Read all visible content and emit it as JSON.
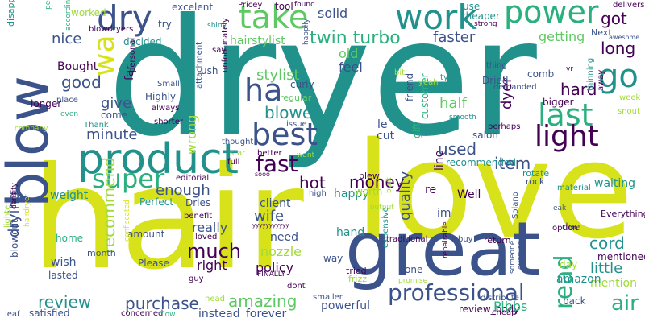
{
  "palette": {
    "yellow": "#d8e21a",
    "green": "#5ec962",
    "teal": "#21918c",
    "blue": "#3b528b",
    "purple": "#440154",
    "lime": "#a0da39",
    "cyan": "#2ab07f"
  },
  "words": [
    {
      "text": "dryer",
      "color": "#21918c"
    },
    {
      "text": "hair",
      "color": "#d8e21a"
    },
    {
      "text": "love",
      "color": "#d8e21a"
    },
    {
      "text": "great",
      "color": "#3b528b"
    },
    {
      "text": "blow",
      "color": "#3b528b"
    },
    {
      "text": "product",
      "color": "#21918c"
    },
    {
      "text": "work",
      "color": "#21918c"
    },
    {
      "text": "power",
      "color": "#2ab07f"
    },
    {
      "text": "take",
      "color": "#5ec962"
    },
    {
      "text": "dry",
      "color": "#3b528b"
    },
    {
      "text": "wa",
      "color": "#d8e21a"
    },
    {
      "text": "go",
      "color": "#21918c"
    },
    {
      "text": "ha",
      "color": "#3b528b"
    },
    {
      "text": "best",
      "color": "#3b528b"
    },
    {
      "text": "last",
      "color": "#2ab07f"
    },
    {
      "text": "light",
      "color": "#440154"
    },
    {
      "text": "fast",
      "color": "#440154"
    },
    {
      "text": "read",
      "color": "#2ab07f"
    },
    {
      "text": "super",
      "color": "#2ab07f"
    },
    {
      "text": "professional",
      "color": "#3b528b"
    },
    {
      "text": "air",
      "color": "#2ab07f"
    },
    {
      "text": "twin turbo",
      "color": "#2ab07f"
    },
    {
      "text": "faster",
      "color": "#3b528b"
    },
    {
      "text": "getting",
      "color": "#5ec962"
    },
    {
      "text": "long",
      "color": "#440154"
    },
    {
      "text": "got",
      "color": "#440154"
    },
    {
      "text": "solid",
      "color": "#3b528b"
    },
    {
      "text": "nice",
      "color": "#3b528b"
    },
    {
      "text": "hairstylist",
      "color": "#5ec962"
    },
    {
      "text": "old",
      "color": "#5ec962"
    },
    {
      "text": "feel",
      "color": "#3b528b"
    },
    {
      "text": "good",
      "color": "#3b528b"
    },
    {
      "text": "stylist",
      "color": "#5ec962"
    },
    {
      "text": "blower",
      "color": "#21918c"
    },
    {
      "text": "hard",
      "color": "#440154"
    },
    {
      "text": "give",
      "color": "#3b528b"
    },
    {
      "text": "half",
      "color": "#5ec962"
    },
    {
      "text": "minute",
      "color": "#3b528b"
    },
    {
      "text": "used",
      "color": "#3b528b"
    },
    {
      "text": "item",
      "color": "#3b528b"
    },
    {
      "text": "enough",
      "color": "#3b528b"
    },
    {
      "text": "hot",
      "color": "#440154"
    },
    {
      "text": "money",
      "color": "#440154"
    },
    {
      "text": "recommend",
      "color": "#a0da39"
    },
    {
      "text": "drying",
      "color": "#3b528b"
    },
    {
      "text": "much",
      "color": "#440154"
    },
    {
      "text": "wife",
      "color": "#3b528b"
    },
    {
      "text": "really",
      "color": "#3b528b"
    },
    {
      "text": "amazing",
      "color": "#5ec962"
    },
    {
      "text": "purchase",
      "color": "#3b528b"
    },
    {
      "text": "review",
      "color": "#21918c"
    },
    {
      "text": "cord",
      "color": "#21918c"
    },
    {
      "text": "little",
      "color": "#21918c"
    },
    {
      "text": "mention",
      "color": "#a0da39"
    },
    {
      "text": "quality",
      "color": "#3b528b"
    },
    {
      "text": "right",
      "color": "#440154"
    },
    {
      "text": "policy",
      "color": "#440154"
    },
    {
      "text": "need",
      "color": "#3b528b"
    },
    {
      "text": "nozzle",
      "color": "#a0da39"
    },
    {
      "text": "hand",
      "color": "#21918c"
    },
    {
      "text": "powerful",
      "color": "#3b528b"
    },
    {
      "text": "dyer",
      "color": "#440154"
    },
    {
      "text": "happy",
      "color": "#21918c"
    },
    {
      "text": "weight",
      "color": "#21918c"
    },
    {
      "text": "wrong",
      "color": "#a0da39"
    },
    {
      "text": "worked",
      "color": "#a0da39"
    },
    {
      "text": "excelent",
      "color": "#3b528b"
    },
    {
      "text": "Bought",
      "color": "#440154"
    },
    {
      "text": "far",
      "color": "#440154"
    },
    {
      "text": "tool",
      "color": "#440154"
    },
    {
      "text": "Pricey",
      "color": "#440154"
    },
    {
      "text": "use",
      "color": "#21918c"
    },
    {
      "text": "cheaper",
      "color": "#21918c"
    },
    {
      "text": "Next",
      "color": "#3b528b"
    },
    {
      "text": "decided",
      "color": "#21918c"
    },
    {
      "text": "Highly",
      "color": "#3b528b"
    },
    {
      "text": "regular",
      "color": "#5ec962"
    },
    {
      "text": "curly",
      "color": "#3b528b"
    },
    {
      "text": "Dried",
      "color": "#3b528b"
    },
    {
      "text": "comb",
      "color": "#3b528b"
    },
    {
      "text": "bigger",
      "color": "#440154"
    },
    {
      "text": "week",
      "color": "#a0da39"
    },
    {
      "text": "snout",
      "color": "#a0da39"
    },
    {
      "text": "mentioned",
      "color": "#440154"
    },
    {
      "text": "Everything",
      "color": "#440154"
    },
    {
      "text": "delivers",
      "color": "#440154"
    },
    {
      "text": "awesome",
      "color": "#3b528b"
    },
    {
      "text": "strong",
      "color": "#440154"
    },
    {
      "text": "thinning",
      "color": "#21918c"
    },
    {
      "text": "away",
      "color": "#440154"
    },
    {
      "text": "le",
      "color": "#3b528b"
    },
    {
      "text": "cut",
      "color": "#3b528b"
    },
    {
      "text": "friend",
      "color": "#3b528b"
    },
    {
      "text": "customer",
      "color": "#2ab07f"
    },
    {
      "text": "gift",
      "color": "#2ab07f"
    },
    {
      "text": "line",
      "color": "#440154"
    },
    {
      "text": "salon",
      "color": "#3b528b"
    },
    {
      "text": "perhaps",
      "color": "#440154"
    },
    {
      "text": "client",
      "color": "#3b528b"
    },
    {
      "text": "Perfect",
      "color": "#21918c"
    },
    {
      "text": "Dries",
      "color": "#3b528b"
    },
    {
      "text": "im",
      "color": "#3b528b"
    },
    {
      "text": "Well",
      "color": "#440154"
    },
    {
      "text": "re",
      "color": "#440154"
    },
    {
      "text": "recommended",
      "color": "#21918c"
    },
    {
      "text": "worth",
      "color": "#a0da39"
    },
    {
      "text": "editorial",
      "color": "#440154"
    },
    {
      "text": "built",
      "color": "#a0da39"
    },
    {
      "text": "amount",
      "color": "#3b528b"
    },
    {
      "text": "benefit",
      "color": "#440154"
    },
    {
      "text": "Solano",
      "color": "#3b528b"
    },
    {
      "text": "doe",
      "color": "#3b528b"
    },
    {
      "text": "option",
      "color": "#440154"
    },
    {
      "text": "rotate",
      "color": "#21918c"
    },
    {
      "text": "rock",
      "color": "#3b528b"
    },
    {
      "text": "waiting",
      "color": "#21918c"
    },
    {
      "text": "material",
      "color": "#21918c"
    },
    {
      "text": "one",
      "color": "#3b528b"
    },
    {
      "text": "day",
      "color": "#a0da39"
    },
    {
      "text": "amazon",
      "color": "#21918c"
    },
    {
      "text": "back",
      "color": "#3b528b"
    },
    {
      "text": "traditional",
      "color": "#440154"
    },
    {
      "text": "way",
      "color": "#3b528b"
    },
    {
      "text": "review_body",
      "color": "#440154"
    },
    {
      "text": "Pibbs",
      "color": "#2ab07f"
    },
    {
      "text": "instead",
      "color": "#3b528b"
    },
    {
      "text": "forever",
      "color": "#3b528b"
    },
    {
      "text": "smaller",
      "color": "#3b528b"
    },
    {
      "text": "satisfied",
      "color": "#3b528b"
    },
    {
      "text": "lasted",
      "color": "#3b528b"
    },
    {
      "text": "wish",
      "color": "#3b528b"
    },
    {
      "text": "home",
      "color": "#2ab07f"
    },
    {
      "text": "loved",
      "color": "#440154"
    },
    {
      "text": "Please",
      "color": "#3b528b"
    },
    {
      "text": "month",
      "color": "#3b528b"
    },
    {
      "text": "blowout",
      "color": "#3b528b"
    },
    {
      "text": "lighter",
      "color": "#a0da39"
    },
    {
      "text": "longer",
      "color": "#440154"
    },
    {
      "text": "disappointed",
      "color": "#21918c"
    },
    {
      "text": "place",
      "color": "#3b528b"
    },
    {
      "text": "personal",
      "color": "#440154"
    },
    {
      "text": "Small",
      "color": "#3b528b"
    },
    {
      "text": "come",
      "color": "#3b528b"
    },
    {
      "text": "Thank",
      "color": "#21918c"
    },
    {
      "text": "always",
      "color": "#440154"
    },
    {
      "text": "shorter",
      "color": "#440154"
    },
    {
      "text": "thought",
      "color": "#3b528b"
    },
    {
      "text": "star",
      "color": "#a0da39"
    },
    {
      "text": "better",
      "color": "#440154"
    },
    {
      "text": "issue",
      "color": "#3b528b"
    },
    {
      "text": "attachment",
      "color": "#3b528b"
    },
    {
      "text": "unfortunately",
      "color": "#440154"
    },
    {
      "text": "say",
      "color": "#440154"
    },
    {
      "text": "ush",
      "color": "#3b528b"
    },
    {
      "text": "try",
      "color": "#3b528b"
    },
    {
      "text": "blowdryers",
      "color": "#440154"
    },
    {
      "text": "people",
      "color": "#2ab07f"
    },
    {
      "text": "according",
      "color": "#2ab07f"
    },
    {
      "text": "shiny",
      "color": "#21918c"
    },
    {
      "text": "found",
      "color": "#440154"
    },
    {
      "text": "happily",
      "color": "#3b528b"
    },
    {
      "text": "bit",
      "color": "#a0da39"
    },
    {
      "text": "yeah",
      "color": "#a0da39"
    },
    {
      "text": "thing",
      "color": "#3b528b"
    },
    {
      "text": "type",
      "color": "#21918c"
    },
    {
      "text": "demanded",
      "color": "#3b528b"
    },
    {
      "text": "yr",
      "color": "#440154"
    },
    {
      "text": "smooth",
      "color": "#21918c"
    },
    {
      "text": "company",
      "color": "#a0da39"
    },
    {
      "text": "even",
      "color": "#2ab07f"
    },
    {
      "text": "want",
      "color": "#a0da39"
    },
    {
      "text": "blew",
      "color": "#440154"
    },
    {
      "text": "full",
      "color": "#440154"
    },
    {
      "text": "sooo",
      "color": "#440154"
    },
    {
      "text": "high",
      "color": "#3b528b"
    },
    {
      "text": "tried",
      "color": "#440154"
    },
    {
      "text": "frizz",
      "color": "#a0da39"
    },
    {
      "text": "FINALLY",
      "color": "#440154"
    },
    {
      "text": "dont",
      "color": "#440154"
    },
    {
      "text": "guy",
      "color": "#440154"
    },
    {
      "text": "yyyyyyyyyyy",
      "color": "#440154"
    },
    {
      "text": "output",
      "color": "#a0da39"
    },
    {
      "text": "repairable",
      "color": "#440154"
    },
    {
      "text": "buy",
      "color": "#3b528b"
    },
    {
      "text": "expensive",
      "color": "#21918c"
    },
    {
      "text": "promise",
      "color": "#a0da39"
    },
    {
      "text": "someone",
      "color": "#3b528b"
    },
    {
      "text": "everyone",
      "color": "#3b528b"
    },
    {
      "text": "eak",
      "color": "#3b528b"
    },
    {
      "text": "return",
      "color": "#440154"
    },
    {
      "text": "distribute",
      "color": "#3b528b"
    },
    {
      "text": "cheap",
      "color": "#440154"
    },
    {
      "text": "density",
      "color": "#440154"
    },
    {
      "text": "hairdryer",
      "color": "#d8e21a"
    },
    {
      "text": "confiscated",
      "color": "#d8e21a"
    },
    {
      "text": "concerned",
      "color": "#440154"
    },
    {
      "text": "flow",
      "color": "#2ab07f"
    },
    {
      "text": "head",
      "color": "#a0da39"
    },
    {
      "text": "leaf",
      "color": "#3b528b"
    }
  ]
}
